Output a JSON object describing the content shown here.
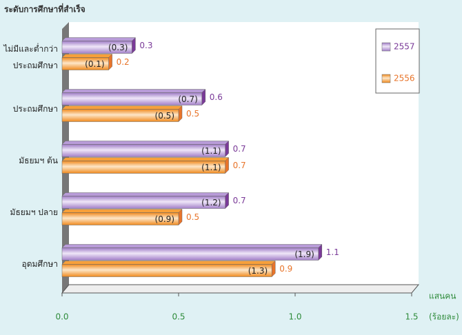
{
  "chart_data": {
    "type": "hbar",
    "title": "ระดับการศึกษาที่สำเร็จ",
    "x_label": "แสนคน",
    "x_unit": "(ร้อยละ)",
    "categories": [
      "ไม่มีและต่ำกว่า\nประถมศึกษา",
      "ประถมศึกษา",
      "มัธยมฯ ต้น",
      "มัธยมฯ ปลาย",
      "อุดมศึกษา"
    ],
    "series": [
      {
        "name": "2557",
        "color": "#b89bd8",
        "label_color": "#7a3a98",
        "values": [
          0.3,
          0.6,
          0.7,
          0.7,
          1.1
        ],
        "percent_values": [
          0.3,
          0.7,
          1.1,
          1.2,
          1.9
        ],
        "percent_labels": [
          "(0.3)",
          "(0.7)",
          "(1.1)",
          "(1.2)",
          "(1.9)"
        ]
      },
      {
        "name": "2556",
        "color": "#f7a03a",
        "label_color": "#e8742a",
        "values": [
          0.2,
          0.5,
          0.7,
          0.5,
          0.9
        ],
        "percent_values": [
          0.1,
          0.5,
          1.1,
          0.9,
          1.3
        ],
        "percent_labels": [
          "(0.1)",
          "(0.5)",
          "(1.1)",
          "(0.9)",
          "(1.3)"
        ]
      }
    ],
    "xlim": [
      0,
      1.5
    ],
    "xticks": [
      {
        "value": 0,
        "label": "0.0"
      },
      0.5,
      {
        "value": 1,
        "label": "1.0"
      },
      1.5
    ],
    "legend": "upper right"
  }
}
